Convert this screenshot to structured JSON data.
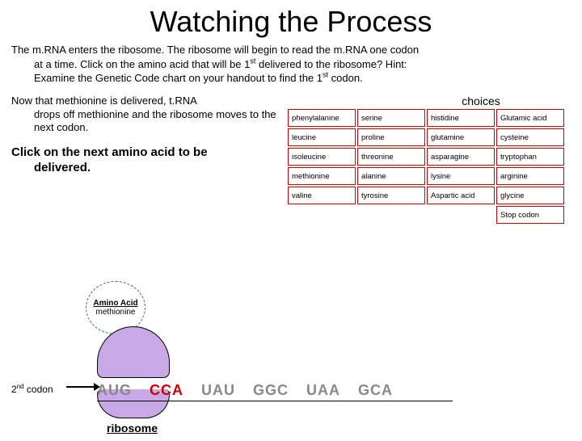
{
  "title": "Watching the Process",
  "intro_line1": "The m.RNA enters the ribosome. The ribosome will begin to read the m.RNA one codon",
  "intro_line2": "at a time. Click on the amino acid that will be 1",
  "intro_line2_suffix": " delivered to the ribosome? Hint:",
  "intro_line3a": "Examine the Genetic Code chart on your handout to find the 1",
  "intro_line3b": " codon.",
  "sup_st": "st",
  "para2_start": "Now that methionine is delivered, t.RNA",
  "para2_rest": "drops off methionine and the ribosome moves to the next codon.",
  "para3_start": "Click on the next amino acid to be",
  "para3_rest": "delivered.",
  "choices_label": "choices",
  "choices": {
    "colors": {
      "border": "#c00"
    },
    "grid": [
      [
        "phenylalanine",
        "serine",
        "histidine",
        "Glutamic acid"
      ],
      [
        "leucine",
        "proline",
        "glutamine",
        "cysteine"
      ],
      [
        "isoleucine",
        "threonine",
        "asparagine",
        "tryptophan"
      ],
      [
        "methionine",
        "alanine",
        "lysine",
        "arginine"
      ],
      [
        "valine",
        "tyrosine",
        "Aspartic acid",
        "glycine"
      ]
    ],
    "stop": "Stop codon"
  },
  "trna": {
    "line1": "Amino Acid",
    "line2": "methionine"
  },
  "codon_label_num": "2",
  "codon_label_sup": "nd",
  "codon_label_word": " codon",
  "mrna": [
    "AUG",
    "CCA",
    "UAU",
    "GGC",
    "UAA",
    "GCA"
  ],
  "ribo_label": "ribosome",
  "colors": {
    "ribosome_fill": "#c9a8e8",
    "trna_border": "#3a7d3a",
    "mrna_active": "#c00",
    "mrna_inactive": "#888"
  }
}
